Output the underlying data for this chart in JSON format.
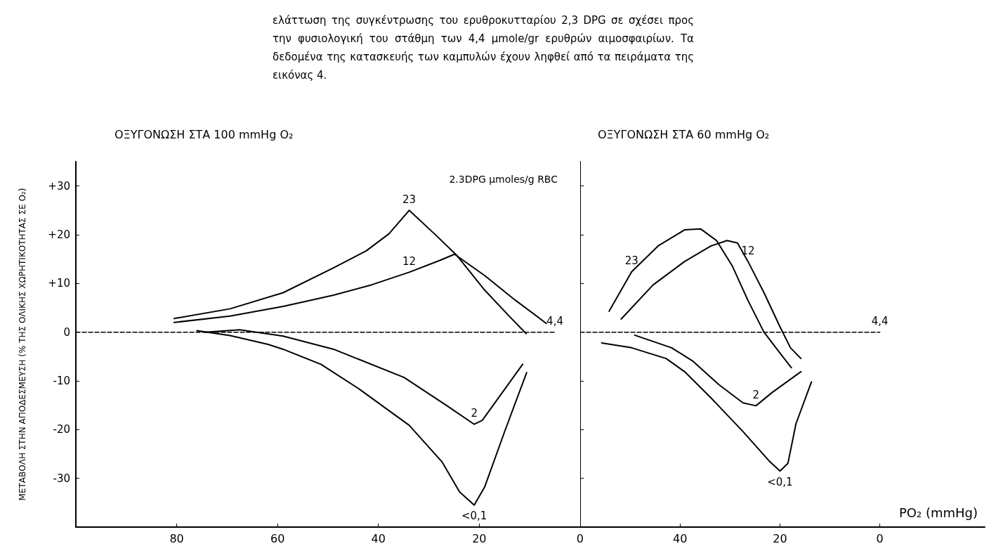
{
  "chart_data": [
    {
      "type": "line",
      "title": "ΟΞΥΓΟΝΩΣΗ ΣΤΑ 100 mmHg O₂",
      "ylabel": "ΜΕΤΑΒΟΛΗ ΣΤΗΝ ΑΠΟΔΕΣΜΕΥΣΗ (% ΤΗΣ ΟΛΙΚΗΣ ΧΩΡΗΤΙΚΟΤΗΤΑΣ ΣΕ O₂)",
      "legend_title": "2.3DPG μmoles/g RBC",
      "annotations": [
        "ελάττωση της συγκέντρωσης του ερυθροκυτταρίου 2,3 DPG σε σχέσει προς την φυσιολογική του στάθμη των 4,4 μmole/gr ερυθρών αιμοσφαιρίων. Τα δεδομένα της κατασκευής των καμπυλών έχουν ληφθεί από τα πειράματα της εικόνας 4."
      ],
      "xlim": [
        100,
        0
      ],
      "xticks": [
        80,
        60,
        40,
        20,
        0
      ],
      "ylim": [
        -40,
        35
      ],
      "yticks": [
        {
          "value": 30,
          "label": "+30"
        },
        {
          "value": 20,
          "label": "+20"
        },
        {
          "value": 10,
          "label": "+10"
        },
        0,
        -10,
        -20,
        -30
      ],
      "grid": false,
      "legend": false,
      "marker": "none",
      "line_style": "solid",
      "series": [
        {
          "name": "4,4",
          "color": "#000000",
          "line_style": "dashed",
          "x": [
            100,
            5
          ],
          "values": [
            0,
            0
          ]
        },
        {
          "name": "23",
          "color": "#000000",
          "x": [
            80.5,
            69.4,
            58.9,
            48.9,
            42.4,
            37.9,
            33.9,
            28.9,
            24.4,
            18.9,
            13.9,
            10.7
          ],
          "values": [
            2.8,
            4.8,
            8.1,
            13.2,
            16.7,
            20.2,
            25,
            20.2,
            15.7,
            8.6,
            3.1,
            -0.3
          ]
        },
        {
          "name": "12",
          "color": "#000000",
          "x": [
            80.5,
            69.4,
            58.9,
            48.9,
            41.4,
            33.9,
            27.9,
            24.9,
            18.9,
            12.9,
            6.7
          ],
          "values": [
            2,
            3.3,
            5.3,
            7.6,
            9.7,
            12.3,
            14.7,
            16,
            11.6,
            6.6,
            1.8
          ]
        },
        {
          "name": "2",
          "color": "#000000",
          "x": [
            74.4,
            67.5,
            58.9,
            48.9,
            34.9,
            26.4,
            21,
            19.4,
            11.4
          ],
          "values": [
            0,
            0.5,
            -0.8,
            -3.5,
            -9.3,
            -15.1,
            -18.9,
            -18.1,
            -6.6
          ]
        },
        {
          "name": "<0,1",
          "color": "#000000",
          "x": [
            76,
            69.4,
            61.9,
            58.9,
            51.4,
            43.9,
            33.9,
            27.4,
            23.9,
            21,
            18.9,
            14.9,
            10.6
          ],
          "values": [
            0.3,
            -0.7,
            -2.5,
            -3.5,
            -6.6,
            -11.6,
            -19.1,
            -26.6,
            -32.8,
            -35.5,
            -31.7,
            -20.2,
            -8.3
          ]
        }
      ]
    },
    {
      "type": "line",
      "title": "ΟΞΥΓΟΝΩΣΗ ΣΤΑ 60 mmHg O₂",
      "xlabel": "PO₂ (mmHg)",
      "xlim": [
        60,
        -21
      ],
      "xticks": [
        40,
        20,
        0
      ],
      "ylim": [
        -40,
        35
      ],
      "yticks": [
        30,
        20,
        10,
        0,
        -10,
        -20,
        -30
      ],
      "tick_labels": "x",
      "grid": false,
      "legend": false,
      "marker": "none",
      "line_style": "solid",
      "series": [
        {
          "name": "4,4",
          "color": "#000000",
          "line_style": "dashed",
          "x": [
            60,
            0
          ],
          "values": [
            0,
            0
          ]
        },
        {
          "name": "23",
          "color": "#000000",
          "x": [
            54.2,
            49.7,
            44.4,
            39.1,
            35.9,
            32.7,
            29.5,
            26.4,
            23.2,
            20,
            17.7
          ],
          "values": [
            4.3,
            12.4,
            17.7,
            21,
            21.2,
            18.8,
            13.5,
            6.5,
            0,
            -4.3,
            -7.3
          ]
        },
        {
          "name": "12",
          "color": "#000000",
          "x": [
            51.8,
            45.4,
            39.1,
            33.8,
            30.6,
            28.5,
            26.4,
            23.2,
            20,
            17.9,
            15.8
          ],
          "values": [
            2.7,
            9.7,
            14.5,
            17.7,
            18.8,
            18.3,
            14.5,
            8.1,
            1.1,
            -3.2,
            -5.4
          ]
        },
        {
          "name": "2",
          "color": "#000000",
          "x": [
            49.1,
            41.7,
            37.5,
            32.2,
            27.4,
            24.8,
            21.6,
            15.8
          ],
          "values": [
            -0.6,
            -3.2,
            -5.9,
            -10.8,
            -14.5,
            -15.1,
            -12.4,
            -8.1
          ]
        },
        {
          "name": "<0,1",
          "color": "#000000",
          "x": [
            55.7,
            49.7,
            42.8,
            39.1,
            33.8,
            27.4,
            22.2,
            20,
            18.4,
            16.8,
            13.7
          ],
          "values": [
            -2.2,
            -3.2,
            -5.4,
            -8.1,
            -13.5,
            -20.4,
            -26.4,
            -28.5,
            -26.9,
            -18.8,
            -10.2
          ]
        }
      ]
    }
  ]
}
